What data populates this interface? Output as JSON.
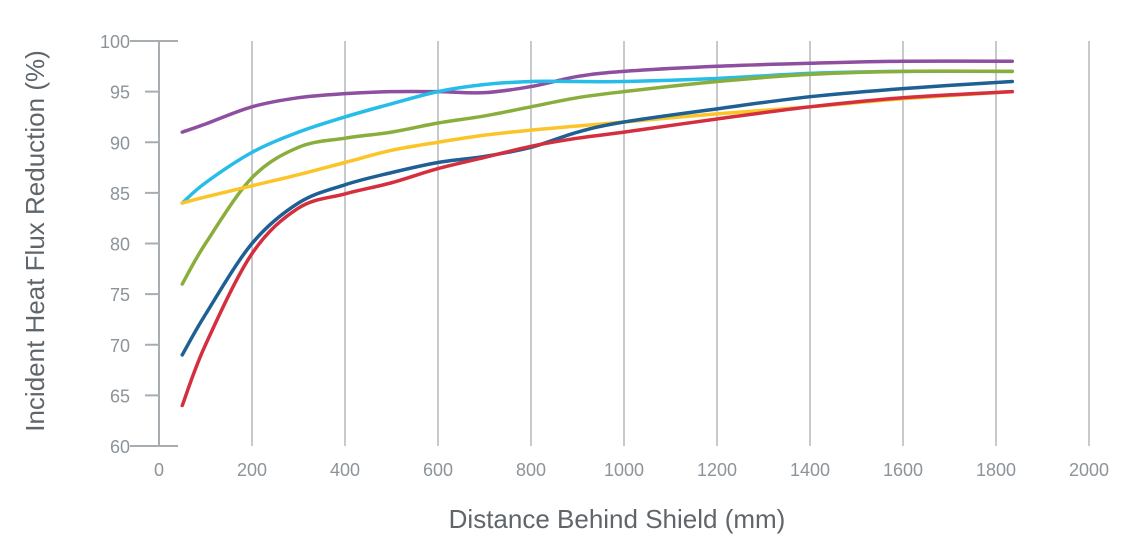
{
  "chart_data": {
    "type": "line",
    "title": "",
    "xlabel": "Distance Behind Shield (mm)",
    "ylabel": "Incident Heat Flux Reduction (%)",
    "xlim": [
      0,
      2000
    ],
    "ylim": [
      60,
      100
    ],
    "x_ticks": [
      0,
      200,
      400,
      600,
      800,
      1000,
      1200,
      1400,
      1600,
      1800,
      2000
    ],
    "y_ticks": [
      60,
      65,
      70,
      75,
      80,
      85,
      90,
      95,
      100
    ],
    "grid": "vertical",
    "legend": "none",
    "series": [
      {
        "color": "#8f4fa0",
        "points": [
          [
            50,
            91
          ],
          [
            100,
            91.8
          ],
          [
            200,
            93.5
          ],
          [
            300,
            94.4
          ],
          [
            400,
            94.8
          ],
          [
            500,
            95
          ],
          [
            600,
            95
          ],
          [
            700,
            94.9
          ],
          [
            800,
            95.5
          ],
          [
            900,
            96.5
          ],
          [
            1000,
            97
          ],
          [
            1200,
            97.5
          ],
          [
            1400,
            97.8
          ],
          [
            1600,
            98
          ],
          [
            1835,
            98
          ]
        ]
      },
      {
        "color": "#26bde8",
        "points": [
          [
            50,
            84
          ],
          [
            100,
            86
          ],
          [
            200,
            89
          ],
          [
            300,
            91
          ],
          [
            400,
            92.5
          ],
          [
            500,
            93.8
          ],
          [
            600,
            95
          ],
          [
            700,
            95.7
          ],
          [
            800,
            96
          ],
          [
            900,
            96
          ],
          [
            1000,
            96
          ],
          [
            1200,
            96.3
          ],
          [
            1400,
            96.8
          ],
          [
            1600,
            97
          ],
          [
            1835,
            97
          ]
        ]
      },
      {
        "color": "#8aae3c",
        "points": [
          [
            50,
            76
          ],
          [
            100,
            80
          ],
          [
            200,
            86.5
          ],
          [
            300,
            89.5
          ],
          [
            400,
            90.4
          ],
          [
            500,
            91
          ],
          [
            600,
            91.9
          ],
          [
            700,
            92.6
          ],
          [
            800,
            93.5
          ],
          [
            900,
            94.4
          ],
          [
            1000,
            95
          ],
          [
            1200,
            96
          ],
          [
            1400,
            96.7
          ],
          [
            1600,
            97
          ],
          [
            1835,
            97
          ]
        ]
      },
      {
        "color": "#fbc428",
        "points": [
          [
            50,
            84
          ],
          [
            100,
            84.6
          ],
          [
            200,
            85.7
          ],
          [
            300,
            86.8
          ],
          [
            400,
            88
          ],
          [
            500,
            89.2
          ],
          [
            600,
            90
          ],
          [
            700,
            90.7
          ],
          [
            800,
            91.2
          ],
          [
            900,
            91.6
          ],
          [
            1000,
            92
          ],
          [
            1200,
            92.8
          ],
          [
            1400,
            93.5
          ],
          [
            1600,
            94.3
          ],
          [
            1835,
            95
          ]
        ]
      },
      {
        "color": "#1e5f94",
        "points": [
          [
            50,
            69
          ],
          [
            100,
            73
          ],
          [
            200,
            80
          ],
          [
            300,
            84
          ],
          [
            400,
            85.8
          ],
          [
            500,
            87
          ],
          [
            600,
            88
          ],
          [
            700,
            88.6
          ],
          [
            800,
            89.5
          ],
          [
            900,
            91
          ],
          [
            1000,
            92
          ],
          [
            1200,
            93.3
          ],
          [
            1400,
            94.5
          ],
          [
            1600,
            95.3
          ],
          [
            1835,
            96
          ]
        ]
      },
      {
        "color": "#d42f3f",
        "points": [
          [
            50,
            64
          ],
          [
            100,
            70
          ],
          [
            200,
            79
          ],
          [
            300,
            83.5
          ],
          [
            400,
            84.9
          ],
          [
            500,
            86
          ],
          [
            600,
            87.4
          ],
          [
            700,
            88.5
          ],
          [
            800,
            89.6
          ],
          [
            900,
            90.4
          ],
          [
            1000,
            91
          ],
          [
            1200,
            92.3
          ],
          [
            1400,
            93.5
          ],
          [
            1600,
            94.4
          ],
          [
            1835,
            95
          ]
        ]
      }
    ]
  }
}
